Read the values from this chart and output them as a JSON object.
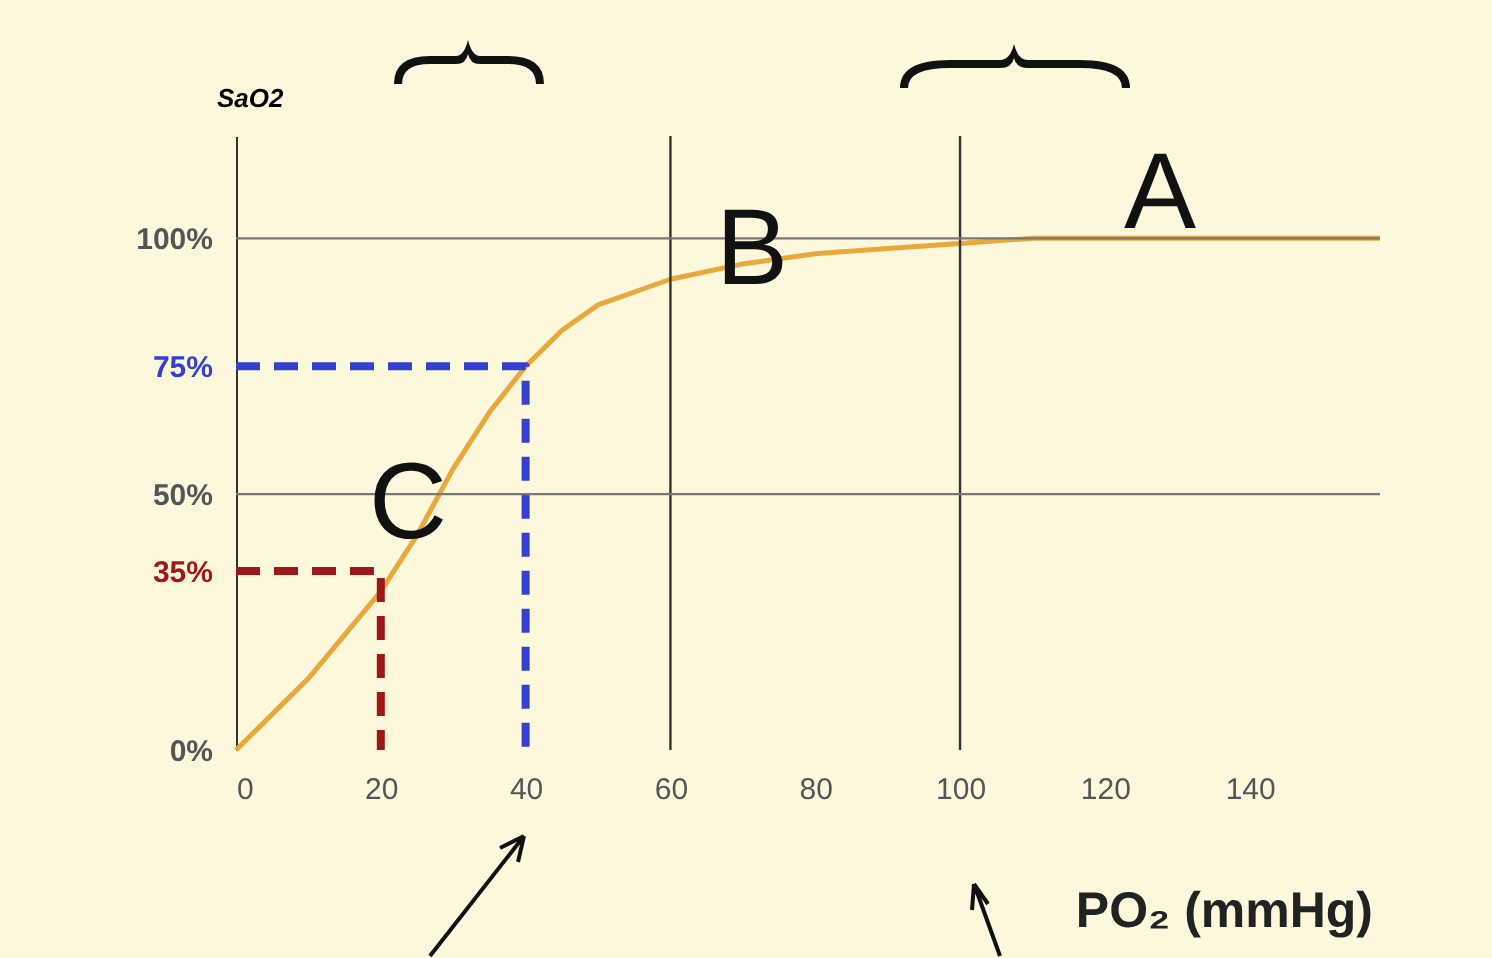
{
  "chart_data": {
    "type": "line",
    "xlabel": "PO₂ (mmHg)",
    "ylabel": "SaO2",
    "xlim": [
      0,
      158
    ],
    "ylim": [
      0,
      120
    ],
    "xticks": [
      0,
      20,
      40,
      60,
      80,
      100,
      120,
      140
    ],
    "yticks": [
      {
        "value": 0,
        "label": "0%"
      },
      {
        "value": 35,
        "label": "35%"
      },
      {
        "value": 50,
        "label": "50%"
      },
      {
        "value": 75,
        "label": "75%"
      },
      {
        "value": 100,
        "label": "100%"
      }
    ],
    "series": [
      {
        "color": "#e8a83a",
        "x": [
          0,
          10,
          20,
          25,
          30,
          35,
          40,
          45,
          50,
          60,
          70,
          80,
          90,
          100,
          110,
          158
        ],
        "values": [
          0,
          14,
          31,
          42,
          55,
          66,
          75,
          82,
          87,
          92,
          95,
          97,
          98,
          99,
          100,
          100
        ]
      },
      {
        "color": "#3340d0",
        "line_style": "dashed",
        "x": [
          0,
          40,
          40
        ],
        "values": [
          75,
          75,
          0
        ]
      },
      {
        "color": "#a01818",
        "line_style": "dashed",
        "x": [
          0,
          20,
          20
        ],
        "values": [
          35,
          35,
          0
        ]
      }
    ],
    "ref_lines": [
      {
        "axis": "x",
        "value": 60,
        "color": "#333333"
      },
      {
        "axis": "x",
        "value": 100,
        "color": "#333333"
      },
      {
        "axis": "y",
        "value": 50,
        "color": "#777777"
      },
      {
        "axis": "y",
        "value": 100,
        "color": "#777777"
      }
    ],
    "annotations": [
      "A",
      "B",
      "C"
    ]
  }
}
